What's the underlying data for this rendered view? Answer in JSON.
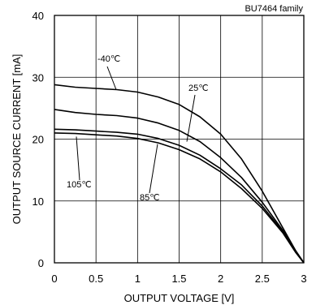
{
  "chart_data": {
    "type": "line",
    "title": "",
    "family_label": "BU7464 family",
    "xlabel": "OUTPUT VOLTAGE [V]",
    "ylabel": "OUTPUT SOURCE CURRENT [mA]",
    "xlim": [
      0,
      3
    ],
    "ylim": [
      0,
      40
    ],
    "xticks": [
      0,
      0.5,
      1,
      1.5,
      2,
      2.5,
      3
    ],
    "xtick_labels": [
      "0",
      "0.5",
      "1",
      "1.5",
      "2",
      "2.5",
      "3"
    ],
    "yticks": [
      0,
      10,
      20,
      30,
      40
    ],
    "ytick_labels": [
      "0",
      "10",
      "20",
      "30",
      "40"
    ],
    "grid": true,
    "legend": "none",
    "series": [
      {
        "name": "-40℃",
        "points": [
          [
            0,
            28.8
          ],
          [
            0.25,
            28.4
          ],
          [
            0.5,
            28.2
          ],
          [
            0.75,
            28.0
          ],
          [
            1.0,
            27.6
          ],
          [
            1.25,
            26.8
          ],
          [
            1.5,
            25.6
          ],
          [
            1.75,
            23.6
          ],
          [
            2.0,
            20.8
          ],
          [
            2.25,
            16.8
          ],
          [
            2.5,
            11.6
          ],
          [
            2.75,
            5.6
          ],
          [
            2.9,
            2.0
          ],
          [
            3.0,
            0
          ]
        ]
      },
      {
        "name": "25℃",
        "points": [
          [
            0,
            24.8
          ],
          [
            0.25,
            24.3
          ],
          [
            0.5,
            24.0
          ],
          [
            0.75,
            23.8
          ],
          [
            1.0,
            23.4
          ],
          [
            1.25,
            22.6
          ],
          [
            1.5,
            21.4
          ],
          [
            1.75,
            19.6
          ],
          [
            2.0,
            17.0
          ],
          [
            2.25,
            13.8
          ],
          [
            2.5,
            9.8
          ],
          [
            2.75,
            5.2
          ],
          [
            2.9,
            2.0
          ],
          [
            3.0,
            0
          ]
        ]
      },
      {
        "name": "85℃",
        "points": [
          [
            0,
            21.6
          ],
          [
            0.25,
            21.5
          ],
          [
            0.5,
            21.3
          ],
          [
            0.75,
            21.1
          ],
          [
            1.0,
            20.8
          ],
          [
            1.25,
            20.1
          ],
          [
            1.5,
            19.0
          ],
          [
            1.75,
            17.4
          ],
          [
            2.0,
            15.2
          ],
          [
            2.25,
            12.6
          ],
          [
            2.5,
            9.2
          ],
          [
            2.75,
            5.0
          ],
          [
            2.9,
            1.8
          ],
          [
            3.0,
            0
          ]
        ]
      },
      {
        "name": "105℃",
        "points": [
          [
            0,
            21.0
          ],
          [
            0.25,
            20.9
          ],
          [
            0.5,
            20.7
          ],
          [
            0.75,
            20.5
          ],
          [
            1.0,
            20.1
          ],
          [
            1.25,
            19.4
          ],
          [
            1.5,
            18.3
          ],
          [
            1.75,
            16.8
          ],
          [
            2.0,
            14.7
          ],
          [
            2.25,
            12.0
          ],
          [
            2.5,
            8.8
          ],
          [
            2.75,
            4.8
          ],
          [
            2.9,
            1.7
          ],
          [
            3.0,
            0
          ]
        ]
      }
    ],
    "annotations": [
      {
        "text": "-40℃",
        "series": "-40℃"
      },
      {
        "text": "25℃",
        "series": "25℃"
      },
      {
        "text": "85℃",
        "series": "85℃"
      },
      {
        "text": "105℃",
        "series": "105℃"
      }
    ]
  }
}
